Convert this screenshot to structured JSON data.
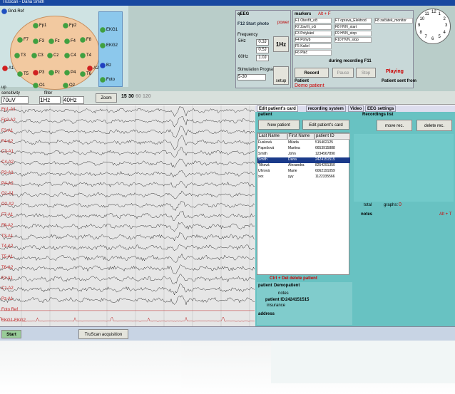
{
  "window": {
    "title": "TruScan - Dana Smith"
  },
  "head": {
    "gnd": "Gnd-Ref",
    "electrodes": [
      "Fp1",
      "Fp2",
      "F7",
      "F3",
      "Fz",
      "F4",
      "F8",
      "A1",
      "T3",
      "C3",
      "Cz",
      "C4",
      "T4",
      "A2",
      "T5",
      "P3",
      "Pz",
      "P4",
      "T6",
      "O1",
      "O2"
    ],
    "extra": [
      "EKG1",
      "EKG2",
      "Bz",
      "Foto"
    ],
    "up": "up"
  },
  "qeeg": {
    "title": "qEEG",
    "start": "F12  Start photo",
    "power": "power",
    "frequency": "Frequency",
    "f5": "5Hz",
    "f60": "60Hz",
    "j1": "0.3J",
    "j2": "0.5J",
    "j3": "1.0J",
    "hz1": "1Hz",
    "stim": "Stimulation Program",
    "prog": "5-30",
    "setup": "setup"
  },
  "markers": {
    "title": "markers",
    "hot": "Alt + F",
    "items": [
      "F1 Otevřít_oči",
      "F2 Zavřít_oči",
      "F3 Polykání",
      "F4 Pohyb",
      "F5 Kašel",
      "F6 Pláč",
      "F7 oprava_Elektrod",
      "F8 HVN_start",
      "F9 HVN_stop",
      "F10 HVN_stop",
      "F8 začátek_monitor"
    ],
    "during": "during recording F11",
    "record": "Record",
    "pause": "Pause",
    "stop": "Stop",
    "playing": "Playing",
    "patient": "Patient",
    "demo": "Demo patient",
    "sent": "Patient sent from"
  },
  "toolbar": {
    "sensitivity": "sensitivity",
    "sens": "70uV",
    "filter": "filter",
    "low": "1Hz",
    "high": "40Hz",
    "zoom": "Zoom",
    "times": [
      "15",
      "30",
      "60",
      "120"
    ]
  },
  "channels": [
    "Fp1-A1",
    "Fp2-A2",
    "F3-A1",
    "F4-A2",
    "C3-A1",
    "C4-A2",
    "P3-A1",
    "P4-A2",
    "O1-A1",
    "O2-A2",
    "F7-A1",
    "F8-A2",
    "T3-A1",
    "T4-A2",
    "T5-A1",
    "T6-A2",
    "Fz-A1",
    "Cz-A2",
    "Pz-A1",
    "Foto Ref",
    "EKG1-EKG2"
  ],
  "tabs": [
    "Edit patient's card",
    "recording system",
    "Video",
    "EEG settings"
  ],
  "patients": {
    "title": "patient",
    "new": "New patient",
    "edit": "Edit patient's card",
    "columns": [
      "Last Name",
      "First Name",
      "patient ID"
    ],
    "rows": [
      [
        "Fusková",
        "Milada",
        "515402125"
      ],
      [
        "Papežová",
        "Martina",
        "6653915888"
      ],
      [
        "Smith",
        "John",
        "1234567890"
      ],
      [
        "Smith",
        "Dana",
        "2424151515"
      ],
      [
        "Tilková",
        "Alexandra",
        "8254291350"
      ],
      [
        "Uhrová",
        "Marie",
        "6062191059"
      ],
      [
        "xxx",
        "yyy",
        "1122335566"
      ]
    ],
    "delete": "Ctrl + Del  delete patient"
  },
  "recordings": {
    "title": "Recordings list",
    "move": "move rec.",
    "delete": "delete rec.",
    "total": "total",
    "graphs": "graphs:",
    "graphs_n": "0",
    "notes": "notes",
    "hot": "Alt + T"
  },
  "detail": {
    "patient": "patient",
    "name": "Demopatient",
    "notes": "notes",
    "id_label": "patient ID",
    "id": "2424151515",
    "insurance": "insurance",
    "address": "address"
  },
  "taskbar": {
    "start": "Start",
    "app": "TruScan acquisition"
  }
}
